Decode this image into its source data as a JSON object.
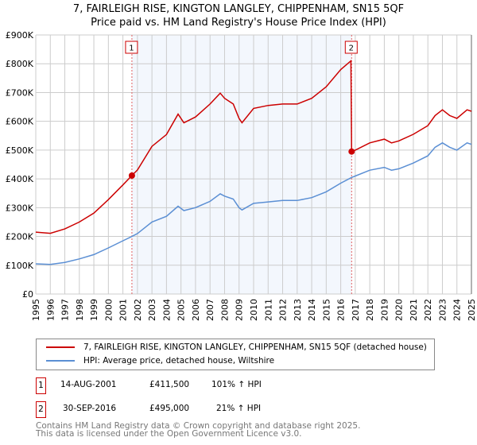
{
  "chart_data": {
    "type": "line",
    "title": "7, FAIRLEIGH RISE, KINGTON LANGLEY, CHIPPENHAM, SN15 5QF",
    "subtitle": "Price paid vs. HM Land Registry's House Price Index (HPI)",
    "xlim": [
      1995,
      2025
    ],
    "ylim": [
      0,
      900000
    ],
    "x_ticks": [
      "1995",
      "1996",
      "1997",
      "1998",
      "1999",
      "2000",
      "2001",
      "2002",
      "2003",
      "2004",
      "2005",
      "2006",
      "2007",
      "2008",
      "2009",
      "2010",
      "2011",
      "2012",
      "2013",
      "2014",
      "2015",
      "2016",
      "2017",
      "2018",
      "2019",
      "2020",
      "2021",
      "2022",
      "2023",
      "2024",
      "2025"
    ],
    "y_ticks": [
      {
        "v": 0,
        "l": "£0"
      },
      {
        "v": 100000,
        "l": "£100K"
      },
      {
        "v": 200000,
        "l": "£200K"
      },
      {
        "v": 300000,
        "l": "£300K"
      },
      {
        "v": 400000,
        "l": "£400K"
      },
      {
        "v": 500000,
        "l": "£500K"
      },
      {
        "v": 600000,
        "l": "£600K"
      },
      {
        "v": 700000,
        "l": "£700K"
      },
      {
        "v": 800000,
        "l": "£800K"
      },
      {
        "v": 900000,
        "l": "£900K"
      }
    ],
    "grid": true,
    "shaded_range": [
      2001.62,
      2016.75
    ],
    "series": [
      {
        "name": "7, FAIRLEIGH RISE, KINGTON LANGLEY, CHIPPENHAM, SN15 5QF (detached house)",
        "color": "#cc0000",
        "x": [
          1995,
          1996,
          1997,
          1998,
          1999,
          2000,
          2001,
          2001.62,
          2002,
          2003,
          2004,
          2004.8,
          2005.2,
          2006,
          2007,
          2007.7,
          2008,
          2008.6,
          2009,
          2009.2,
          2010,
          2011,
          2012,
          2013,
          2014,
          2015,
          2016,
          2016.7,
          2016.75,
          2017,
          2018,
          2019,
          2019.5,
          2020,
          2021,
          2022,
          2022.5,
          2023,
          2023.5,
          2024,
          2024.7,
          2025
        ],
        "y": [
          215000,
          211000,
          226000,
          250000,
          281000,
          328000,
          379000,
          411500,
          431000,
          513000,
          554000,
          625000,
          595000,
          615000,
          660000,
          698000,
          680000,
          660000,
          610000,
          595000,
          645000,
          655000,
          660000,
          660000,
          680000,
          720000,
          780000,
          810000,
          495000,
          500000,
          525000,
          538000,
          525000,
          532000,
          555000,
          585000,
          620000,
          640000,
          620000,
          610000,
          640000,
          635000
        ]
      },
      {
        "name": "HPI: Average price, detached house, Wiltshire",
        "color": "#5b8fd4",
        "x": [
          1995,
          1996,
          1997,
          1998,
          1999,
          2000,
          2001,
          2001.62,
          2002,
          2003,
          2004,
          2004.8,
          2005.2,
          2006,
          2007,
          2007.7,
          2008,
          2008.6,
          2009,
          2009.2,
          2010,
          2011,
          2012,
          2013,
          2014,
          2015,
          2016,
          2016.75,
          2017,
          2018,
          2019,
          2019.5,
          2020,
          2021,
          2022,
          2022.5,
          2023,
          2023.5,
          2024,
          2024.7,
          2025
        ],
        "y": [
          105000,
          103000,
          110000,
          122000,
          137000,
          160000,
          185000,
          200000,
          210000,
          250000,
          270000,
          305000,
          290000,
          300000,
          322000,
          348000,
          340000,
          330000,
          300000,
          292000,
          315000,
          320000,
          325000,
          325000,
          335000,
          355000,
          385000,
          405000,
          410000,
          430000,
          440000,
          430000,
          435000,
          455000,
          480000,
          510000,
          525000,
          510000,
          500000,
          525000,
          520000
        ]
      }
    ],
    "markers": [
      {
        "label": "1",
        "x": 2001.62,
        "y": 411500
      },
      {
        "label": "2",
        "x": 2016.75,
        "y": 495000
      }
    ]
  },
  "header": {
    "title": "7, FAIRLEIGH RISE, KINGTON LANGLEY, CHIPPENHAM, SN15 5QF",
    "subtitle": "Price paid vs. HM Land Registry's House Price Index (HPI)"
  },
  "legend": {
    "property": "7, FAIRLEIGH RISE, KINGTON LANGLEY, CHIPPENHAM, SN15 5QF (detached house)",
    "hpi": "HPI: Average price, detached house, Wiltshire"
  },
  "sales": [
    {
      "num": "1",
      "date": "14-AUG-2001",
      "price": "£411,500",
      "hpi": "101% ↑ HPI"
    },
    {
      "num": "2",
      "date": "30-SEP-2016",
      "price": "£495,000",
      "hpi": "21% ↑ HPI"
    }
  ],
  "footer": {
    "line1": "Contains HM Land Registry data © Crown copyright and database right 2025.",
    "line2": "This data is licensed under the Open Government Licence v3.0."
  }
}
